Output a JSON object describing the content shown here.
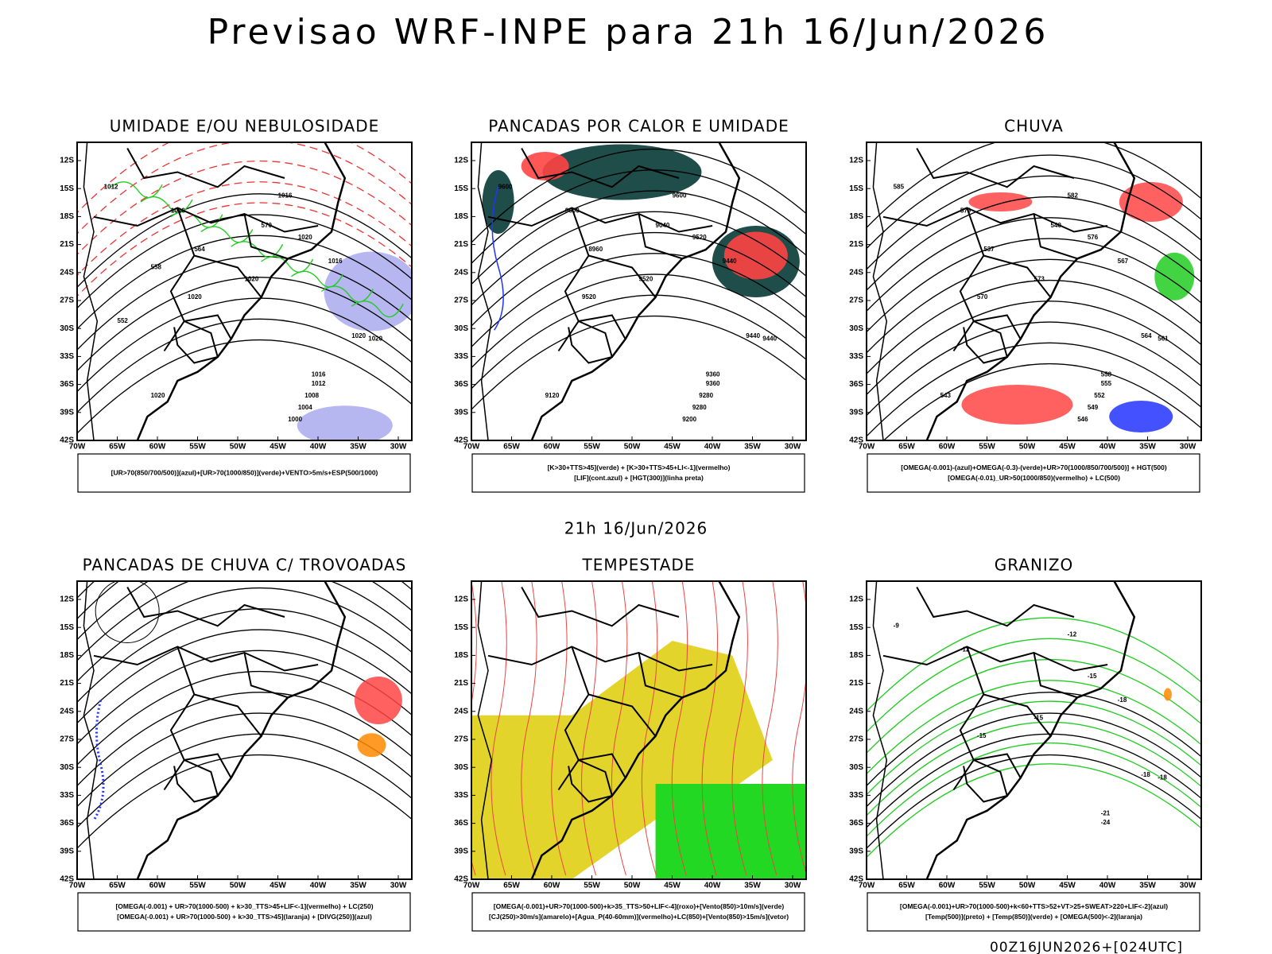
{
  "title": "Previsao WRF-INPE  para 21h 16/Jun/2026",
  "date_label": "21h 16/Jun/2026",
  "footer": "00Z16JUN2026+[024UTC]",
  "axes": {
    "lat": [
      "12S",
      "15S",
      "18S",
      "21S",
      "24S",
      "27S",
      "30S",
      "33S",
      "36S",
      "39S",
      "42S"
    ],
    "lon": [
      "70W",
      "65W",
      "60W",
      "55W",
      "50W",
      "45W",
      "40W",
      "35W",
      "30W"
    ]
  },
  "panels": [
    {
      "title": "UMIDADE E/OU NEBULOSIDADE",
      "legend": [
        "[UR>70(850/700/500)](azul)+[UR>70(1000/850)](verde)+VENTO>5m/s+ESP(500/1000)"
      ],
      "contour_labels": [
        "1012",
        "1016",
        "1016",
        "1020",
        "1020",
        "1020",
        "1016",
        "1020",
        "1020",
        "1016",
        "1012",
        "1008",
        "1004",
        "1000",
        "1020",
        "570",
        "564",
        "558",
        "552"
      ]
    },
    {
      "title": "PANCADAS POR CALOR E UMIDADE",
      "legend": [
        "[K>30+TTS>45](verde) + [K>30+TTS>45+LI<-1](vermelho)",
        "[LIF](cont.azul) + [HGT(300)](linha preta)"
      ],
      "contour_labels": [
        "9600",
        "9600",
        "9600",
        "9520",
        "9520",
        "9520",
        "9440",
        "9440",
        "9440",
        "9360",
        "9360",
        "9280",
        "9280",
        "9200",
        "9120",
        "9040",
        "8960"
      ]
    },
    {
      "title": "CHUVA",
      "legend": [
        "[OMEGA(-0.001)-(azul)+OMEGA(-0.3)-(verde)+UR>70(1000/850/700/500)] + HGT(500)",
        "[OMEGA(-0.01)_UR>50(1000/850)(vermelho) + LC(500)"
      ],
      "contour_labels": [
        "585",
        "582",
        "579",
        "576",
        "573",
        "570",
        "567",
        "564",
        "561",
        "558",
        "555",
        "552",
        "549",
        "546",
        "543",
        "540",
        "537"
      ]
    },
    {
      "title": "PANCADAS DE CHUVA C/ TROVOADAS",
      "legend": [
        "[OMEGA(-0.001) + UR>70(1000-500) + k>30_TTS>45+LIF<-1](vermelho) + LC(250)",
        "[OMEGA(-0.001) + UR>70(1000-500) + k>30_TTS>45](laranja) + [DIVG(250)](azul)"
      ],
      "contour_labels": []
    },
    {
      "title": "TEMPESTADE",
      "legend": [
        "[OMEGA(-0.001)+UR>70(1000-500)+k>35_TTS>50+LIF<-4](roxo)+[Vento(850)>10m/s](verde)",
        "[CJ(250)>30m/s](amarelo)+[Agua_P(40-60mm)](vermelho)+LC(850)+[Vento(850)>15m/s](vetor)"
      ],
      "contour_labels": []
    },
    {
      "title": "GRANIZO",
      "legend": [
        "[OMEGA(-0.001)+UR>70(1000-500)+k<60+TTS>52+VT>25+SWEAT>220+LIF<-2](azul)",
        "[Temp(500)](preto) + [Temp(850)](verde) + [OMEGA(500)<-2](laranja)"
      ],
      "contour_labels": [
        "-9",
        "-12",
        "-12",
        "-15",
        "-15",
        "-15",
        "-18",
        "-18",
        "-18",
        "-21",
        "-24"
      ]
    }
  ]
}
